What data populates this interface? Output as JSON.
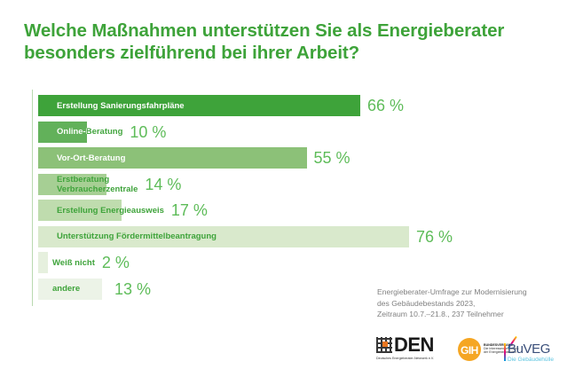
{
  "chart_data": {
    "type": "bar",
    "orientation": "horizontal",
    "title": "Welche Maßnahmen unterstützen Sie als Energieberater besonders zielführend bei ihrer Arbeit?",
    "title_lines": [
      "Welche Maßnahmen unterstützen Sie als Energieberater",
      "besonders zielführend bei ihrer Arbeit?"
    ],
    "categories": [
      "Erstellung Sanierungsfahrpläne",
      "Online-Beratung",
      "Vor-Ort-Beratung",
      "Erstberatung Verbraucherzentrale",
      "Erstellung Energieausweis",
      "Unterstützung Fördermittelbeantragung",
      "Weiß nicht",
      "andere"
    ],
    "category_label_lines": [
      [
        "Erstellung Sanierungsfahrpläne"
      ],
      [
        "Online-Beratung"
      ],
      [
        "Vor-Ort-Beratung"
      ],
      [
        "Erstberatung",
        "Verbraucherzentrale"
      ],
      [
        "Erstellung Energieausweis"
      ],
      [
        "Unterstützung Fördermittelbeantragung"
      ],
      [
        "Weiß nicht"
      ],
      [
        "andere"
      ]
    ],
    "values": [
      66,
      10,
      55,
      14,
      17,
      76,
      2,
      13
    ],
    "value_labels": [
      "66 %",
      "10 %",
      "55 %",
      "14 %",
      "17 %",
      "76 %",
      "2 %",
      "13 %"
    ],
    "unit": "%",
    "xlim": [
      0,
      100
    ],
    "bar_colors": [
      "#3ea33a",
      "#62b15a",
      "#8cc178",
      "#a6cf94",
      "#bfdcae",
      "#d9e9cc",
      "#e6f0de",
      "#ecf3e7"
    ],
    "xlabel": "",
    "ylabel": "",
    "grid": false,
    "legend": "none"
  },
  "source_note": {
    "lines": [
      "Energieberater-Umfrage zur Modernisierung",
      "des Gebäudebestands 2023,",
      "Zeitraum 10.7.–21.8., 237 Teilnehmer"
    ]
  },
  "logos": {
    "den": {
      "name": "DEN",
      "subtitle": "Deutsches Energieberater-Netzwerk e.V."
    },
    "gih": {
      "name": "GIH",
      "subtitle_lines": [
        "BUNDESVERBAND",
        "Die Interessenvertretung",
        "der Energieberatenden"
      ]
    },
    "buveg": {
      "name": "BuVEG",
      "subtitle": "Die Gebäudehülle"
    }
  }
}
